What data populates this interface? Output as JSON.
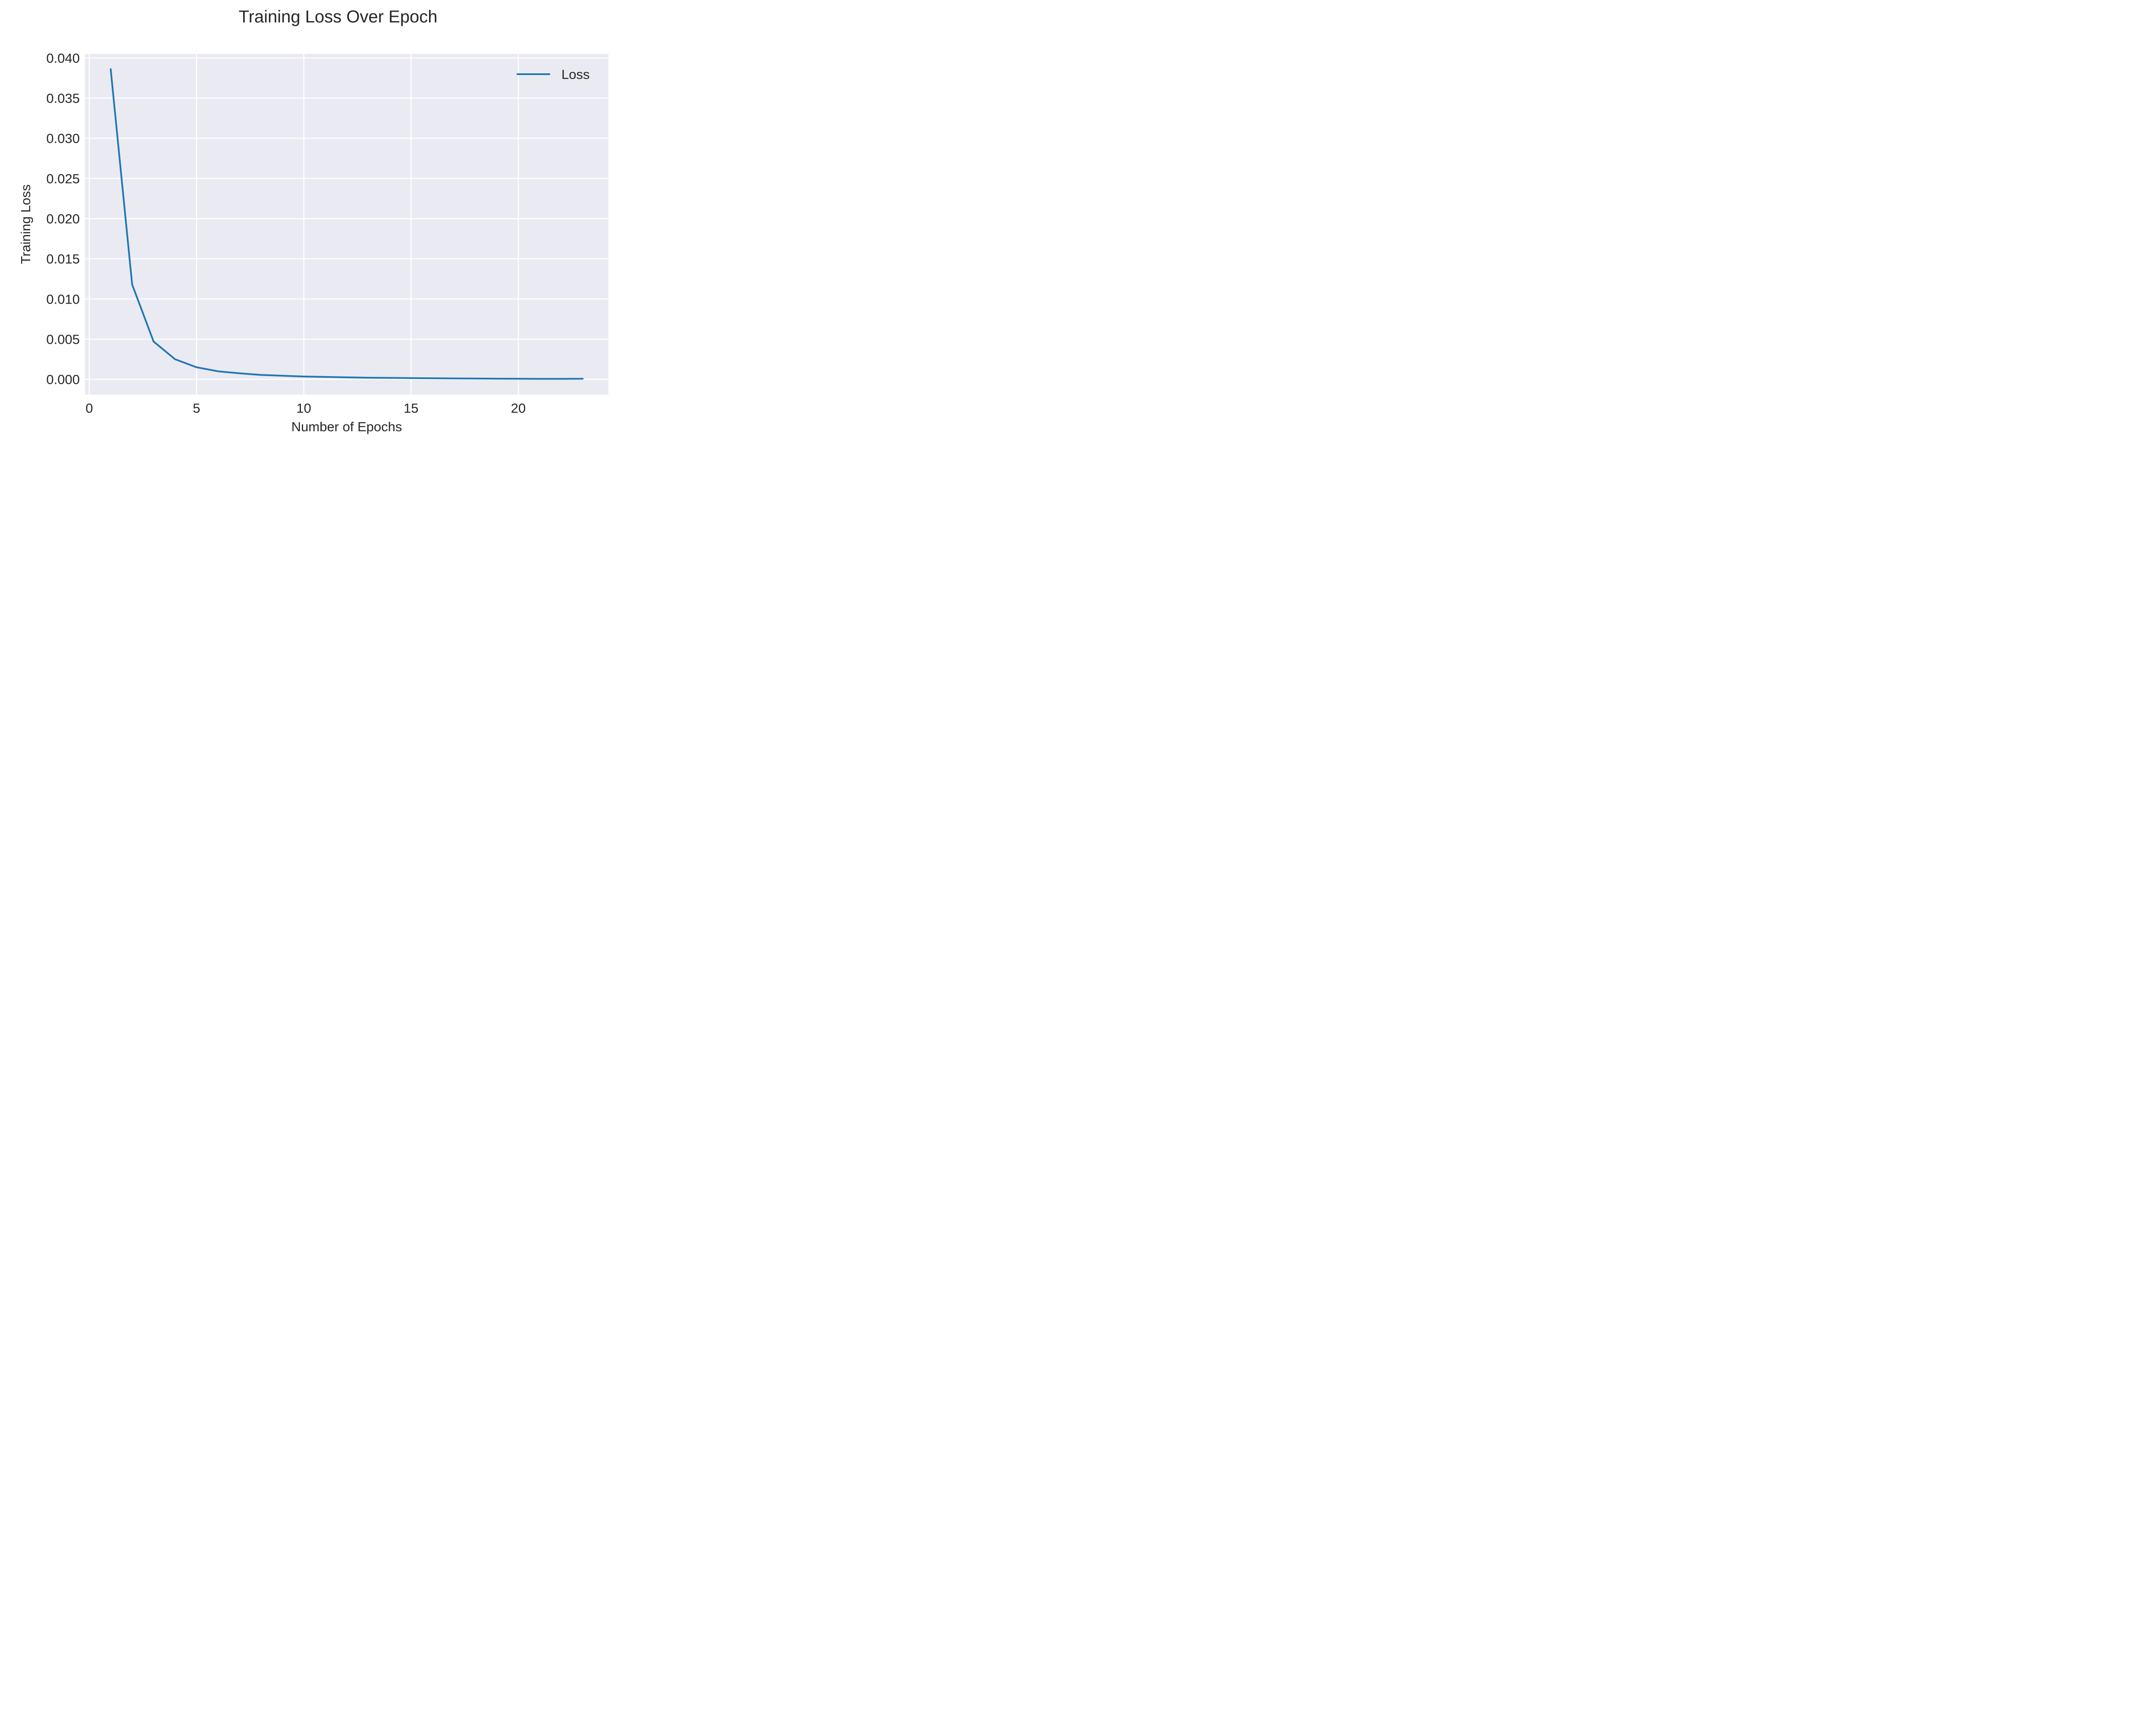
{
  "chart_data": {
    "type": "line",
    "title": "Training Loss Over Epoch",
    "xlabel": "Number of Epochs",
    "ylabel": "Training Loss",
    "xlim": [
      -0.2,
      24.2
    ],
    "ylim": [
      -0.0019,
      0.0405
    ],
    "xticks": [
      0,
      5,
      10,
      15,
      20
    ],
    "xtick_labels": [
      "0",
      "5",
      "10",
      "15",
      "20"
    ],
    "yticks": [
      0.0,
      0.005,
      0.01,
      0.015,
      0.02,
      0.025,
      0.03,
      0.035,
      0.04
    ],
    "ytick_labels": [
      "0.000",
      "0.005",
      "0.010",
      "0.015",
      "0.020",
      "0.025",
      "0.030",
      "0.035",
      "0.040"
    ],
    "grid": true,
    "legend_position": "upper-right",
    "background_color": "#eaeaf2",
    "grid_color": "#ffffff",
    "series": [
      {
        "name": "Loss",
        "color": "#1f77b4",
        "x": [
          1,
          2,
          3,
          4,
          5,
          6,
          7,
          8,
          9,
          10,
          11,
          12,
          13,
          14,
          15,
          16,
          17,
          18,
          19,
          20,
          21,
          22,
          23
        ],
        "y": [
          0.0386,
          0.0118,
          0.0047,
          0.0025,
          0.0015,
          0.001,
          0.00075,
          0.00055,
          0.00045,
          0.00035,
          0.0003,
          0.00025,
          0.0002,
          0.00018,
          0.00015,
          0.00013,
          0.00011,
          0.0001,
          8e-05,
          7e-05,
          6e-05,
          6e-05,
          7e-05
        ]
      }
    ]
  }
}
